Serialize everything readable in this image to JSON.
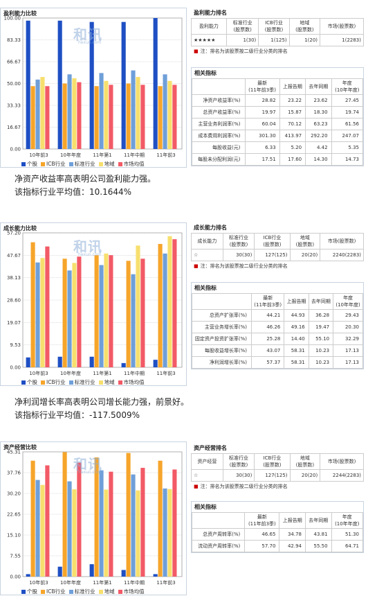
{
  "colors": {
    "stock": "#1f4fc4",
    "icb": "#f6a52b",
    "std": "#6f9fd9",
    "region": "#f7df6e",
    "market": "#f25a66"
  },
  "watermark": {
    "text": "和讯",
    "sub": "hexun.com"
  },
  "legend_labels": [
    "个股",
    "ICB行业",
    "标准行业",
    "地域",
    "市场均值"
  ],
  "sections": [
    {
      "chart_title": "盈利能力比较",
      "rank_title": "盈利能力排名",
      "rank_head": [
        "盈利能力",
        "标准行业\n(股票数)",
        "ICB行业\n(股票数)",
        "地域\n(股票数)",
        "市场(股票数)"
      ],
      "rank_row": [
        "★★★★★",
        "1(30)",
        "1(125)",
        "1(20)",
        "1(2283)"
      ],
      "note": "注：排名为该股票按二级行业分类的排名",
      "rel_title": "相关指标",
      "rel_head": [
        "",
        "最新\n(11年前3季)",
        "上报告期",
        "去年同期",
        "年度\n(10年年度)"
      ],
      "rel_rows": [
        [
          "净资产收益率(%)",
          "28.82",
          "23.22",
          "23.62",
          "27.45"
        ],
        [
          "总资产收益率(%)",
          "19.97",
          "15.87",
          "18.30",
          "19.74"
        ],
        [
          "主营业务利润率(%)",
          "60.04",
          "70.12",
          "63.23",
          "61.56"
        ],
        [
          "成本费用利润率(%)",
          "301.30",
          "413.97",
          "292.20",
          "247.07"
        ],
        [
          "每股收益(元)",
          "6.33",
          "5.20",
          "4.42",
          "5.35"
        ],
        [
          "每股未分配利润(元)",
          "17.51",
          "17.60",
          "14.30",
          "14.73"
        ]
      ],
      "text": [
        "净资产收益率高表明公司盈利能力强。",
        "该指标行业平均值：10.1644%"
      ]
    },
    {
      "chart_title": "成长能力比较",
      "rank_title": "成长能力排名",
      "rank_head": [
        "成长能力",
        "标准行业\n(股票数)",
        "ICB行业\n(股票数)",
        "地域\n(股票数)",
        "市场(股票数)"
      ],
      "rank_row": [
        "☆",
        "30(30)",
        "127(125)",
        "20(20)",
        "2240(2283)"
      ],
      "note": "注：排名为该股票按二级行业分类的排名",
      "rel_title": "相关指标",
      "rel_head": [
        "",
        "最新\n(11年前3季)",
        "上报告期",
        "去年同期",
        "年度\n(10年年度)"
      ],
      "rel_rows": [
        [
          "总资产扩张率(%)",
          "44.21",
          "44.93",
          "36.28",
          "29.43"
        ],
        [
          "主营业务增长率(%)",
          "46.26",
          "49.16",
          "19.47",
          "20.30"
        ],
        [
          "固定资产投资扩张率(%)",
          "25.28",
          "14.40",
          "55.10",
          "32.29"
        ],
        [
          "每股收益增长率(%)",
          "43.07",
          "58.31",
          "10.23",
          "17.13"
        ],
        [
          "净利润增长率(%)",
          "57.37",
          "58.31",
          "10.23",
          "17.13"
        ]
      ],
      "text": [
        "净利润增长率高表明公司增长能力强，前景好。",
        "该指标行业平均值：-117.5009%"
      ]
    },
    {
      "chart_title": "资产经营比较",
      "rank_title": "资产经营排名",
      "rank_head": [
        "资产经营",
        "标准行业\n(股票数)",
        "ICB行业\n(股票数)",
        "地域\n(股票数)",
        "市场(股票数)"
      ],
      "rank_row": [
        "☆",
        "30(30)",
        "127(125)",
        "20(20)",
        "2244(2283)"
      ],
      "note": "注：排名为该股票按二级行业分类的排名",
      "rel_title": "相关指标",
      "rel_head": [
        "",
        "最新\n(11年前3季)",
        "上报告期",
        "去年同期",
        "年度\n(10年年度)"
      ],
      "rel_rows": [
        [
          "总资产周转率(%)",
          "46.65",
          "34.78",
          "43.81",
          "51.30"
        ],
        [
          "流动资产周转率(%)",
          "57.70",
          "42.94",
          "55.50",
          "64.71"
        ]
      ],
      "text": []
    }
  ],
  "chart_data": [
    {
      "type": "bar",
      "title": "盈利能力比较",
      "categories": [
        "10年前3",
        "10年年度",
        "11年第1",
        "11年中期",
        "11年前3"
      ],
      "yticks": [
        "0.00",
        "16.67",
        "33.33",
        "50.00",
        "66.67",
        "83.33",
        "100.00"
      ],
      "ylim": [
        0,
        100
      ],
      "series": [
        {
          "name": "个股",
          "values": [
            98,
            98,
            97,
            97,
            100
          ]
        },
        {
          "name": "ICB行业",
          "values": [
            48,
            50,
            48,
            50,
            48
          ]
        },
        {
          "name": "标准行业",
          "values": [
            53,
            57,
            58,
            60,
            57
          ]
        },
        {
          "name": "地域",
          "values": [
            55,
            54,
            52,
            55,
            52
          ]
        },
        {
          "name": "市场均值",
          "values": [
            48,
            51,
            49,
            49,
            49
          ]
        }
      ]
    },
    {
      "type": "bar",
      "title": "成长能力比较",
      "categories": [
        "10年前3",
        "10年年度",
        "11年第1",
        "11年中期",
        "11年前3"
      ],
      "yticks": [
        "0.00",
        "9.53",
        "19.07",
        "28.60",
        "38.13",
        "47.67",
        "57.20"
      ],
      "ylim": [
        0,
        57.2
      ],
      "series": [
        {
          "name": "个股",
          "values": [
            4.2,
            4.5,
            4.5,
            1.8,
            3.2
          ]
        },
        {
          "name": "ICB行业",
          "values": [
            53.2,
            46.2,
            47.7,
            45.3,
            52.5
          ]
        },
        {
          "name": "标准行业",
          "values": [
            44.6,
            41.2,
            43.5,
            39.6,
            48.4
          ]
        },
        {
          "name": "地域",
          "values": [
            46.5,
            44.4,
            48.4,
            51.8,
            55.8
          ]
        },
        {
          "name": "市场均值",
          "values": [
            51.4,
            47.1,
            47.7,
            46.2,
            54.5
          ]
        }
      ]
    },
    {
      "type": "bar",
      "title": "资产经营比较",
      "categories": [
        "10年前3",
        "10年年度",
        "11年第1",
        "11年中期",
        "11年前3"
      ],
      "yticks": [
        "0.00",
        "7.55",
        "15.10",
        "22.65",
        "30.20",
        "37.76",
        "45.31"
      ],
      "ylim": [
        0,
        45.31
      ],
      "series": [
        {
          "name": "个股",
          "values": [
            0.9,
            3.6,
            4.5,
            2.4,
            0.9
          ]
        },
        {
          "name": "ICB行业",
          "values": [
            42.1,
            45.2,
            43.3,
            44.9,
            42.1
          ]
        },
        {
          "name": "标准行业",
          "values": [
            35.1,
            34.6,
            38.6,
            37.1,
            32.0
          ]
        },
        {
          "name": "地域",
          "values": [
            33.3,
            31.7,
            31.6,
            31.3,
            31.8
          ]
        },
        {
          "name": "市场均值",
          "values": [
            40.4,
            41.4,
            38.1,
            39.5,
            38.9
          ]
        }
      ]
    }
  ]
}
